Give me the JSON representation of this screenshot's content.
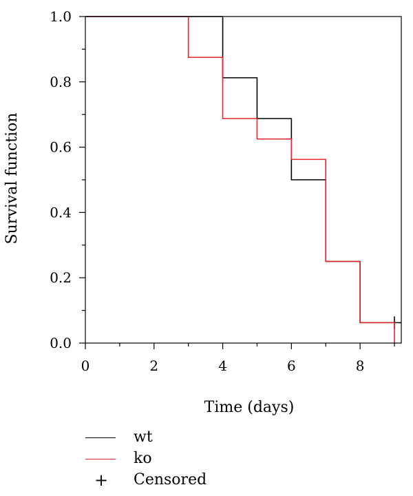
{
  "chart_data": {
    "type": "line",
    "title": "",
    "xlabel": "Time (days)",
    "ylabel": "Survival function",
    "xlim": [
      0,
      9.2
    ],
    "ylim": [
      0,
      1.0
    ],
    "x_ticks": [
      0,
      2,
      4,
      6,
      8
    ],
    "x_tick_labels": [
      "0",
      "2",
      "4",
      "6",
      "8"
    ],
    "y_ticks": [
      0.0,
      0.2,
      0.4,
      0.6,
      0.8,
      1.0
    ],
    "y_tick_labels": [
      "0.0",
      "0.2",
      "0.4",
      "0.6",
      "0.8",
      "1.0"
    ],
    "grid": false,
    "legend_position": "bottom-left",
    "series": [
      {
        "name": "wt",
        "color": "#000000",
        "step": true,
        "x": [
          0,
          4,
          5,
          6,
          7,
          8,
          9
        ],
        "y": [
          1.0,
          0.8125,
          0.6875,
          0.5,
          0.25,
          0.0625,
          0.0625
        ],
        "end_x": 9.2,
        "censored": [
          {
            "x": 9.0,
            "y": 0.0625
          }
        ]
      },
      {
        "name": "ko",
        "color": "#e8262a",
        "step": true,
        "x": [
          0,
          3,
          4,
          5,
          6,
          7,
          8,
          9
        ],
        "y": [
          1.0,
          0.875,
          0.6875,
          0.625,
          0.5625,
          0.25,
          0.0625,
          0.0
        ],
        "end_x": 9.0,
        "censored": []
      }
    ]
  },
  "legend": {
    "items": [
      {
        "kind": "line",
        "label": "wt",
        "color": "#000000"
      },
      {
        "kind": "line",
        "label": "ko",
        "color": "#e8262a"
      },
      {
        "kind": "marker",
        "symbol": "+",
        "label": "Censored"
      }
    ]
  }
}
